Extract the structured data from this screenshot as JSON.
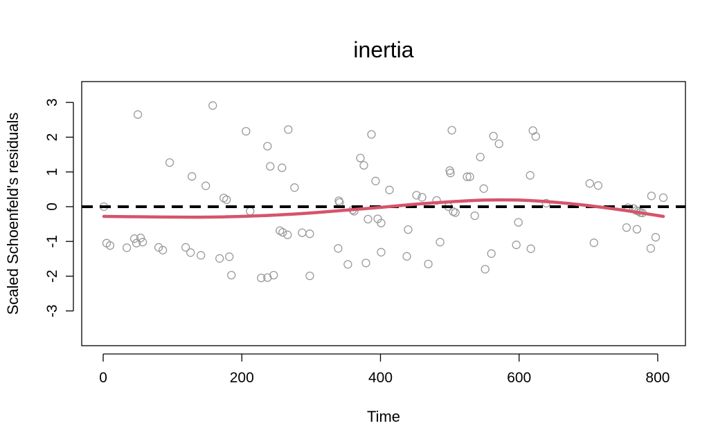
{
  "chart_data": {
    "type": "scatter",
    "title": "inertia",
    "xlabel": "Time",
    "ylabel": "Scaled Schoenfeld's residuals",
    "xlim": [
      -31,
      840
    ],
    "ylim": [
      -4,
      3.6
    ],
    "xticks": [
      0,
      200,
      400,
      600,
      800
    ],
    "yticks": [
      -3,
      -2,
      -1,
      0,
      1,
      2,
      3
    ],
    "grid": false,
    "legend": "none",
    "colors": {
      "points": "#9a9a9a",
      "smooth": "#d6546a",
      "reference": "#000000"
    },
    "points": [
      [
        1,
        0.0
      ],
      [
        5,
        -1.05
      ],
      [
        10,
        -1.12
      ],
      [
        34,
        -1.18
      ],
      [
        45,
        -0.92
      ],
      [
        48,
        -1.05
      ],
      [
        50,
        2.65
      ],
      [
        54,
        -0.9
      ],
      [
        57,
        -1.02
      ],
      [
        80,
        -1.17
      ],
      [
        86,
        -1.25
      ],
      [
        96,
        1.27
      ],
      [
        119,
        -1.17
      ],
      [
        126,
        -1.32
      ],
      [
        128,
        0.87
      ],
      [
        141,
        -1.4
      ],
      [
        148,
        0.6
      ],
      [
        158,
        2.91
      ],
      [
        168,
        -1.49
      ],
      [
        174,
        0.25
      ],
      [
        178,
        0.2
      ],
      [
        182,
        -1.44
      ],
      [
        185,
        -1.97
      ],
      [
        206,
        2.17
      ],
      [
        212,
        -0.13
      ],
      [
        228,
        -2.05
      ],
      [
        237,
        1.74
      ],
      [
        237,
        -2.04
      ],
      [
        241,
        1.16
      ],
      [
        246,
        -1.97
      ],
      [
        255,
        -0.69
      ],
      [
        258,
        1.12
      ],
      [
        259,
        -0.74
      ],
      [
        266,
        -0.81
      ],
      [
        267,
        2.22
      ],
      [
        276,
        0.55
      ],
      [
        287,
        -0.75
      ],
      [
        298,
        -0.78
      ],
      [
        298,
        -1.99
      ],
      [
        339,
        -1.2
      ],
      [
        340,
        0.17
      ],
      [
        341,
        0.12
      ],
      [
        353,
        -1.66
      ],
      [
        360,
        -0.09
      ],
      [
        362,
        -0.13
      ],
      [
        371,
        1.4
      ],
      [
        376,
        1.19
      ],
      [
        379,
        -1.62
      ],
      [
        382,
        -0.36
      ],
      [
        387,
        2.08
      ],
      [
        393,
        0.74
      ],
      [
        396,
        -0.35
      ],
      [
        401,
        -0.47
      ],
      [
        401,
        -1.31
      ],
      [
        413,
        0.48
      ],
      [
        438,
        -1.43
      ],
      [
        440,
        -0.66
      ],
      [
        452,
        0.33
      ],
      [
        460,
        0.27
      ],
      [
        469,
        -1.65
      ],
      [
        481,
        0.18
      ],
      [
        486,
        -1.02
      ],
      [
        498,
        0.0
      ],
      [
        500,
        1.04
      ],
      [
        501,
        0.97
      ],
      [
        503,
        2.2
      ],
      [
        505,
        -0.14
      ],
      [
        508,
        -0.17
      ],
      [
        525,
        0.86
      ],
      [
        529,
        0.86
      ],
      [
        536,
        -0.26
      ],
      [
        544,
        1.43
      ],
      [
        549,
        0.52
      ],
      [
        551,
        -1.8
      ],
      [
        560,
        -1.35
      ],
      [
        563,
        2.03
      ],
      [
        571,
        1.81
      ],
      [
        596,
        -1.1
      ],
      [
        599,
        -0.45
      ],
      [
        616,
        0.9
      ],
      [
        617,
        -1.21
      ],
      [
        620,
        2.19
      ],
      [
        624,
        2.02
      ],
      [
        639,
        0.1
      ],
      [
        702,
        0.67
      ],
      [
        708,
        -1.04
      ],
      [
        714,
        0.61
      ],
      [
        755,
        -0.6
      ],
      [
        757,
        -0.03
      ],
      [
        765,
        -0.05
      ],
      [
        769,
        -0.11
      ],
      [
        770,
        -0.65
      ],
      [
        772,
        -0.13
      ],
      [
        775,
        -0.17
      ],
      [
        778,
        -0.18
      ],
      [
        790,
        -1.2
      ],
      [
        791,
        0.31
      ],
      [
        797,
        -0.88
      ],
      [
        808,
        0.26
      ]
    ],
    "smooth": [
      [
        1,
        -0.28
      ],
      [
        50,
        -0.29
      ],
      [
        100,
        -0.3
      ],
      [
        150,
        -0.3
      ],
      [
        200,
        -0.28
      ],
      [
        250,
        -0.24
      ],
      [
        300,
        -0.18
      ],
      [
        350,
        -0.1
      ],
      [
        400,
        -0.02
      ],
      [
        450,
        0.07
      ],
      [
        500,
        0.14
      ],
      [
        550,
        0.19
      ],
      [
        600,
        0.19
      ],
      [
        650,
        0.13
      ],
      [
        700,
        0.03
      ],
      [
        750,
        -0.1
      ],
      [
        808,
        -0.28
      ]
    ],
    "reference_line": 0
  }
}
